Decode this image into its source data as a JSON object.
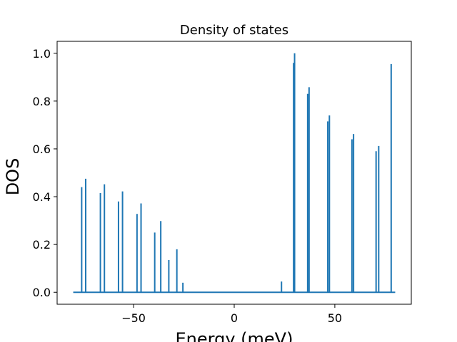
{
  "chart_data": {
    "type": "line",
    "title": "Density of states",
    "xlabel": "Energy (meV)",
    "ylabel": "DOS",
    "xlim": [
      -88,
      88
    ],
    "ylim": [
      -0.05,
      1.05
    ],
    "xticks": [
      -50,
      0,
      50
    ],
    "xtick_labels": [
      "−50",
      "0",
      "50"
    ],
    "yticks": [
      0.0,
      0.2,
      0.4,
      0.6,
      0.8,
      1.0
    ],
    "ytick_labels": [
      "0.0",
      "0.2",
      "0.4",
      "0.6",
      "0.8",
      "1.0"
    ],
    "grid": false,
    "series_color": "#1f77b4",
    "x_range": [
      -80,
      80
    ],
    "peaks": [
      {
        "x": -75.8,
        "y": 0.44
      },
      {
        "x": -73.8,
        "y": 0.475
      },
      {
        "x": -66.5,
        "y": 0.415
      },
      {
        "x": -64.5,
        "y": 0.452
      },
      {
        "x": -57.5,
        "y": 0.38
      },
      {
        "x": -55.5,
        "y": 0.422
      },
      {
        "x": -48.3,
        "y": 0.328
      },
      {
        "x": -46.3,
        "y": 0.372
      },
      {
        "x": -39.5,
        "y": 0.25
      },
      {
        "x": -36.5,
        "y": 0.298
      },
      {
        "x": -32.5,
        "y": 0.135
      },
      {
        "x": -28.5,
        "y": 0.18
      },
      {
        "x": -25.5,
        "y": 0.04
      },
      {
        "x": 23.5,
        "y": 0.045
      },
      {
        "x": 29.5,
        "y": 0.96
      },
      {
        "x": 30.0,
        "y": 1.0
      },
      {
        "x": 36.5,
        "y": 0.83
      },
      {
        "x": 37.2,
        "y": 0.858
      },
      {
        "x": 46.5,
        "y": 0.715
      },
      {
        "x": 47.3,
        "y": 0.74
      },
      {
        "x": 58.5,
        "y": 0.64
      },
      {
        "x": 59.3,
        "y": 0.662
      },
      {
        "x": 70.5,
        "y": 0.59
      },
      {
        "x": 71.8,
        "y": 0.612
      },
      {
        "x": 78.0,
        "y": 0.955
      }
    ]
  }
}
